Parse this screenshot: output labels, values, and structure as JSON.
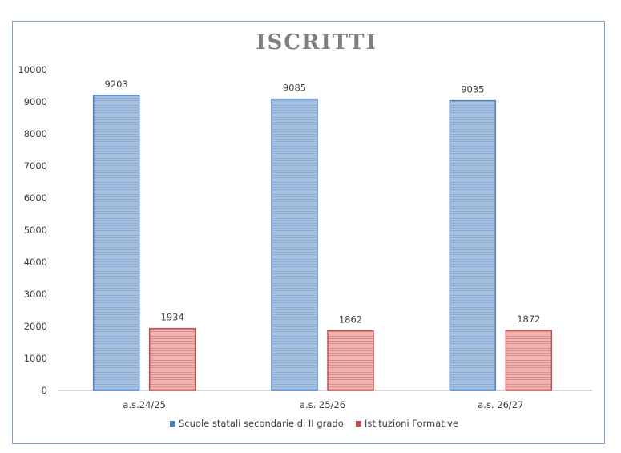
{
  "chart_data": {
    "type": "bar",
    "title": "ISCRITTI",
    "categories": [
      "a.s.24/25",
      "a.s. 25/26",
      "a.s. 26/27"
    ],
    "series": [
      {
        "name": "Scuole statali secondarie di II grado",
        "values": [
          9203,
          9085,
          9035
        ],
        "color": "#4f81bd",
        "fill": "#95b3d7"
      },
      {
        "name": "Istituzioni Formative",
        "values": [
          1934,
          1862,
          1872
        ],
        "color": "#c0504d",
        "fill": "#e6a09e"
      }
    ],
    "ylim": [
      0,
      10000
    ],
    "yticks": [
      0,
      1000,
      2000,
      3000,
      4000,
      5000,
      6000,
      7000,
      8000,
      9000,
      10000
    ],
    "data_labels": true,
    "grid": false,
    "legend": "bottom"
  }
}
